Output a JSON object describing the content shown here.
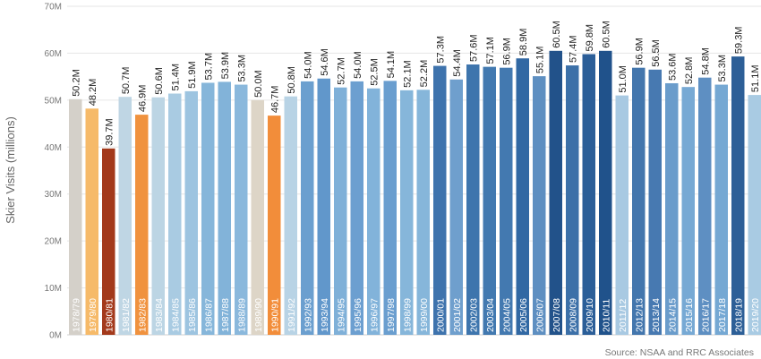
{
  "chart_data": {
    "type": "bar",
    "title": "",
    "xlabel": "",
    "ylabel": "Skier Visits (millions)",
    "ylim": [
      0,
      70
    ],
    "y_ticks": [
      0,
      10,
      20,
      30,
      40,
      50,
      60,
      70
    ],
    "y_tick_labels": [
      "0M",
      "10M",
      "20M",
      "30M",
      "40M",
      "50M",
      "60M",
      "70M"
    ],
    "grid": true,
    "source": "Source: NSAA and RRC Associates",
    "categories": [
      "1978/79",
      "1979/80",
      "1980/81",
      "1981/82",
      "1982/83",
      "1983/84",
      "1984/85",
      "1985/86",
      "1986/87",
      "1987/88",
      "1988/89",
      "1989/90",
      "1990/91",
      "1991/92",
      "1992/93",
      "1993/94",
      "1994/95",
      "1995/96",
      "1996/97",
      "1997/98",
      "1998/99",
      "1999/00",
      "2000/01",
      "2001/02",
      "2002/03",
      "2003/04",
      "2004/05",
      "2005/06",
      "2006/07",
      "2007/08",
      "2008/09",
      "2009/10",
      "2010/11",
      "2011/12",
      "2012/13",
      "2013/14",
      "2014/15",
      "2015/16",
      "2016/17",
      "2017/18",
      "2018/19",
      "2019/20"
    ],
    "values": [
      50.2,
      48.2,
      39.7,
      50.7,
      46.9,
      50.6,
      51.4,
      51.9,
      53.7,
      53.9,
      53.3,
      50.0,
      46.7,
      50.8,
      54.0,
      54.6,
      52.7,
      54.0,
      52.5,
      54.1,
      52.1,
      52.2,
      57.3,
      54.4,
      57.6,
      57.1,
      56.9,
      58.9,
      55.1,
      60.5,
      57.4,
      59.8,
      60.5,
      51.0,
      56.9,
      56.5,
      53.6,
      52.8,
      54.8,
      53.3,
      59.3,
      51.1
    ],
    "value_labels": [
      "50.2M",
      "48.2M",
      "39.7M",
      "50.7M",
      "46.9M",
      "50.6M",
      "51.4M",
      "51.9M",
      "53.7M",
      "53.9M",
      "53.3M",
      "50.0M",
      "46.7M",
      "50.8M",
      "54.0M",
      "54.6M",
      "52.7M",
      "54.0M",
      "52.5M",
      "54.1M",
      "52.1M",
      "52.2M",
      "57.3M",
      "54.4M",
      "57.6M",
      "57.1M",
      "56.9M",
      "58.9M",
      "55.1M",
      "60.5M",
      "57.4M",
      "59.8M",
      "60.5M",
      "51.0M",
      "56.9M",
      "56.5M",
      "53.6M",
      "52.8M",
      "54.8M",
      "53.3M",
      "59.3M",
      "51.1M"
    ],
    "colors": [
      "#d4d0c9",
      "#f6ba69",
      "#a3391b",
      "#bfd6e4",
      "#f0923e",
      "#bcd5e4",
      "#a9cbe2",
      "#9dc4e0",
      "#86b6da",
      "#82b3d9",
      "#8ab8dc",
      "#ddd5c7",
      "#f28d3a",
      "#b8d3e5",
      "#6b9fcf",
      "#6197cb",
      "#7fb0d8",
      "#6c9fd0",
      "#82b3da",
      "#6a9ecf",
      "#86b6da",
      "#86b6da",
      "#3e73ad",
      "#6f9fcd",
      "#3e75ad",
      "#4279b0",
      "#4379b0",
      "#3168a3",
      "#5e8fc1",
      "#22528a",
      "#3c70a8",
      "#2b5e98",
      "#20528b",
      "#a8c9e2",
      "#4376ad",
      "#4779b1",
      "#6a9ccb",
      "#77a9d4",
      "#5e8fc2",
      "#75a8d3",
      "#2d5f97",
      "#a9cbe3"
    ]
  }
}
